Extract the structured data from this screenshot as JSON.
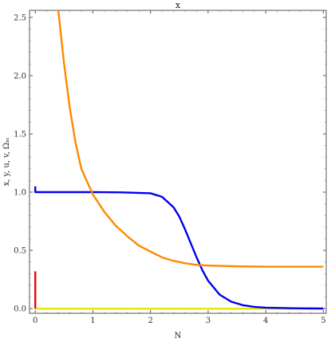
{
  "chart_data": {
    "type": "line",
    "title": "x",
    "xlabel": "N",
    "ylabel": "x, y, u, v, Ωₘ",
    "xlim": [
      -0.1,
      5.05
    ],
    "ylim": [
      -0.04,
      2.56
    ],
    "x_ticks": [
      "0",
      "1",
      "2",
      "3",
      "4",
      "5"
    ],
    "y_ticks": [
      "0.0",
      "0.5",
      "1.0",
      "1.5",
      "2.0",
      "2.5"
    ],
    "x_tick_values": [
      0,
      1,
      2,
      3,
      4,
      5
    ],
    "y_tick_values": [
      0,
      0.5,
      1.0,
      1.5,
      2.0,
      2.5
    ],
    "grid": false,
    "series": [
      {
        "color": "#0000ee",
        "x": [
          0,
          0,
          0,
          0.5,
          1.0,
          1.5,
          2.0,
          2.2,
          2.4,
          2.5,
          2.6,
          2.7,
          2.8,
          2.9,
          3.0,
          3.2,
          3.4,
          3.6,
          3.8,
          4.0,
          4.5,
          5.0
        ],
        "y": [
          1.05,
          1.0,
          1.0,
          1.0,
          1.0,
          0.998,
          0.99,
          0.96,
          0.87,
          0.79,
          0.68,
          0.56,
          0.44,
          0.33,
          0.24,
          0.12,
          0.06,
          0.03,
          0.015,
          0.008,
          0.003,
          0.001
        ]
      },
      {
        "color": "#ff8800",
        "x": [
          0.4,
          0.5,
          0.6,
          0.7,
          0.8,
          0.9,
          1.0,
          1.2,
          1.4,
          1.6,
          1.8,
          2.0,
          2.2,
          2.4,
          2.6,
          2.8,
          3.0,
          3.5,
          4.0,
          4.5,
          5.0
        ],
        "y": [
          2.56,
          2.1,
          1.72,
          1.42,
          1.2,
          1.09,
          0.98,
          0.83,
          0.71,
          0.62,
          0.54,
          0.49,
          0.44,
          0.41,
          0.39,
          0.375,
          0.37,
          0.363,
          0.36,
          0.36,
          0.36
        ]
      },
      {
        "color": "#ee0000",
        "x": [
          0,
          0
        ],
        "y": [
          0.0,
          0.32
        ]
      },
      {
        "color": "#e6e600",
        "x": [
          0,
          5.0
        ],
        "y": [
          0.0,
          0.0
        ]
      }
    ]
  }
}
